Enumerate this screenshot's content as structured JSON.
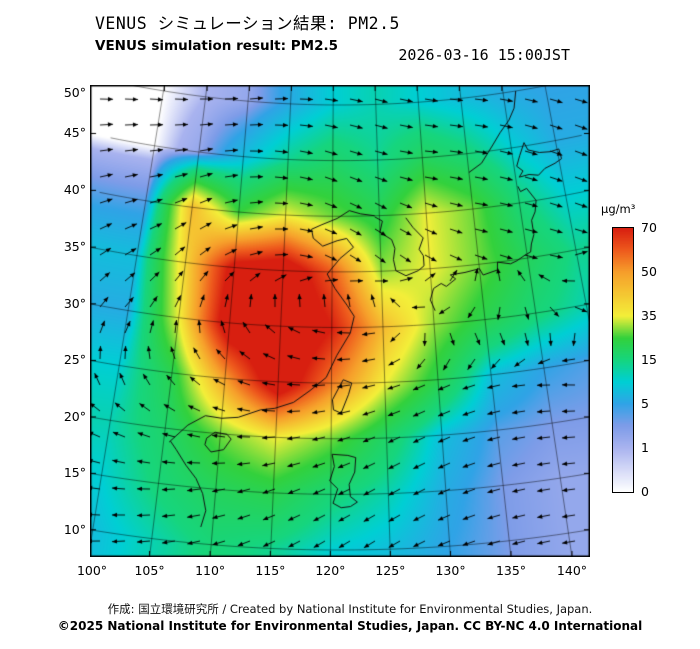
{
  "header": {
    "title_ja": "VENUS シミュレーション結果: PM2.5",
    "title_en": "VENUS simulation result: PM2.5",
    "timestamp": "2026-03-16 15:00JST"
  },
  "footer": {
    "line1": "作成: 国立環境研究所 / Created by National Institute for Environmental Studies, Japan.",
    "line2": "©2025 National Institute for Environmental Studies, Japan. CC BY-NC 4.0 International"
  },
  "colorbar": {
    "unit": "μg/m³",
    "levels": [
      70,
      50,
      35,
      15,
      5,
      1,
      0
    ],
    "scale": [
      [
        0,
        "#ffffff"
      ],
      [
        1,
        "#a9b3ef"
      ],
      [
        3,
        "#7e9ce8"
      ],
      [
        5,
        "#30a3e6"
      ],
      [
        10,
        "#00cfd4"
      ],
      [
        15,
        "#16d57e"
      ],
      [
        25,
        "#33d13c"
      ],
      [
        35,
        "#f3ef39"
      ],
      [
        50,
        "#f69f2b"
      ],
      [
        60,
        "#ee5a1d"
      ],
      [
        70,
        "#d81f10"
      ]
    ]
  },
  "axes": {
    "lat_ticks": [
      "50°",
      "45°",
      "40°",
      "35°",
      "30°",
      "25°",
      "20°",
      "15°",
      "10°"
    ],
    "lat_values": [
      50,
      45,
      40,
      35,
      30,
      25,
      20,
      15,
      10
    ],
    "lon_ticks": [
      "100°",
      "105°",
      "110°",
      "115°",
      "120°",
      "125°",
      "130°",
      "135°",
      "140°"
    ],
    "lon_values": [
      100,
      105,
      110,
      115,
      120,
      125,
      130,
      135,
      140
    ]
  },
  "chart_data": {
    "type": "heatmap",
    "title": "VENUS simulation result: PM2.5",
    "pollutant": "PM2.5",
    "time_label": "2026-03-16 15:00JST",
    "unit": "μg/m³",
    "lon_range": [
      100,
      145
    ],
    "lat_range": [
      10,
      50
    ],
    "colorbar_levels": [
      70,
      50,
      35,
      15,
      5,
      1,
      0
    ],
    "grid_lons": [
      100,
      105,
      110,
      115,
      120,
      125,
      130,
      135,
      140,
      145
    ],
    "grid_lats": [
      50,
      45,
      40,
      35,
      30,
      25,
      20,
      15,
      10
    ],
    "pm25_grid": [
      [
        0,
        1,
        2,
        6,
        10,
        12,
        10,
        8,
        6,
        5
      ],
      [
        0,
        2,
        8,
        14,
        18,
        14,
        20,
        16,
        10,
        6
      ],
      [
        4,
        45,
        25,
        35,
        28,
        22,
        35,
        28,
        16,
        10
      ],
      [
        8,
        40,
        75,
        80,
        60,
        30,
        35,
        28,
        20,
        14
      ],
      [
        6,
        35,
        80,
        85,
        70,
        45,
        30,
        22,
        16,
        12
      ],
      [
        10,
        22,
        50,
        80,
        55,
        35,
        22,
        8,
        5,
        4
      ],
      [
        12,
        18,
        28,
        35,
        28,
        18,
        8,
        4,
        3,
        3
      ],
      [
        10,
        16,
        20,
        22,
        16,
        12,
        6,
        3,
        2,
        2
      ],
      [
        8,
        12,
        16,
        14,
        10,
        8,
        5,
        3,
        2,
        2
      ]
    ],
    "wind_dir_deg": [
      [
        -5,
        0,
        5,
        0,
        -10,
        -15,
        -10,
        -5,
        -10,
        -15
      ],
      [
        5,
        10,
        0,
        -10,
        -20,
        -15,
        -5,
        -10,
        -15,
        -20
      ],
      [
        15,
        25,
        10,
        -5,
        -25,
        -30,
        -20,
        -10,
        -15,
        -20
      ],
      [
        30,
        45,
        25,
        0,
        -30,
        -40,
        -30,
        -20,
        -15,
        -15
      ],
      [
        50,
        70,
        100,
        140,
        170,
        190,
        300,
        325,
        335,
        340
      ],
      [
        90,
        120,
        150,
        170,
        185,
        195,
        205,
        195,
        180,
        175
      ],
      [
        150,
        160,
        170,
        185,
        195,
        205,
        205,
        195,
        185,
        180
      ],
      [
        170,
        180,
        190,
        200,
        205,
        210,
        205,
        195,
        188,
        182
      ],
      [
        180,
        185,
        195,
        205,
        212,
        212,
        202,
        196,
        190,
        186
      ]
    ],
    "coastlines": [
      [
        [
          109,
          11.5
        ],
        [
          109.3,
          13
        ],
        [
          108.9,
          14.5
        ],
        [
          108.2,
          15.8
        ],
        [
          107.2,
          16.9
        ],
        [
          106.2,
          18.2
        ],
        [
          105.6,
          18.9
        ]
      ],
      [
        [
          105.5,
          18.8
        ],
        [
          107,
          20.5
        ],
        [
          108.5,
          21.5
        ],
        [
          110,
          21.4
        ],
        [
          111.5,
          21.6
        ],
        [
          113.5,
          22.4
        ],
        [
          114.8,
          22.6
        ],
        [
          116.5,
          23.2
        ],
        [
          118,
          24.3
        ],
        [
          119.5,
          25.5
        ],
        [
          120.5,
          27.5
        ],
        [
          121.8,
          29.5
        ],
        [
          122.2,
          31
        ],
        [
          121.5,
          32
        ],
        [
          120.3,
          33.5
        ],
        [
          119.5,
          34.8
        ],
        [
          120.8,
          36.2
        ],
        [
          122.2,
          37.2
        ],
        [
          121.5,
          38
        ],
        [
          120.5,
          37.8
        ],
        [
          119,
          37.3
        ],
        [
          118,
          38
        ],
        [
          117.8,
          38.8
        ],
        [
          118.8,
          39.2
        ],
        [
          120.5,
          39.8
        ],
        [
          121.8,
          40.5
        ],
        [
          123,
          40.2
        ],
        [
          124.5,
          40
        ]
      ],
      [
        [
          124.5,
          39.9
        ],
        [
          125.3,
          39.5
        ],
        [
          125,
          38.5
        ],
        [
          126.2,
          37.8
        ],
        [
          126.5,
          37
        ],
        [
          126.3,
          36
        ],
        [
          126.5,
          35
        ],
        [
          127.5,
          34.5
        ],
        [
          128.8,
          34.9
        ],
        [
          129.4,
          35.3
        ],
        [
          129.4,
          36.2
        ],
        [
          129,
          36.8
        ],
        [
          129.5,
          37.8
        ],
        [
          128.5,
          38.8
        ],
        [
          127.8,
          39.7
        ]
      ],
      [
        [
          130.2,
          31.2
        ],
        [
          129.8,
          32.2
        ],
        [
          130.2,
          33.2
        ],
        [
          131,
          33.6
        ],
        [
          131.5,
          33.3
        ],
        [
          132.5,
          33.9
        ],
        [
          132,
          34.3
        ],
        [
          133.5,
          34.4
        ],
        [
          135,
          34.6
        ],
        [
          135.3,
          34
        ],
        [
          136.8,
          34.3
        ],
        [
          136.9,
          35
        ],
        [
          138.2,
          34.7
        ],
        [
          138.9,
          34.9
        ],
        [
          139.8,
          35.3
        ],
        [
          140.4,
          35.5
        ],
        [
          140.6,
          36.2
        ],
        [
          141,
          37
        ],
        [
          141,
          38.3
        ],
        [
          141.5,
          39
        ],
        [
          141.8,
          40
        ],
        [
          141,
          41.2
        ],
        [
          140.3,
          41
        ],
        [
          140.1,
          41.5
        ]
      ],
      [
        [
          140.4,
          42.3
        ],
        [
          141.5,
          42.4
        ],
        [
          142.5,
          42.2
        ],
        [
          143.3,
          42.7
        ],
        [
          144.5,
          43
        ],
        [
          145.3,
          43.3
        ],
        [
          145.2,
          44.2
        ],
        [
          144.2,
          44.1
        ],
        [
          143,
          44.2
        ],
        [
          141.8,
          44.6
        ],
        [
          141.5,
          45.3
        ],
        [
          140.8,
          44.2
        ],
        [
          140.3,
          43.3
        ],
        [
          140.9,
          42.8
        ],
        [
          140.4,
          42.3
        ]
      ],
      [
        [
          121.1,
          25.3
        ],
        [
          121.9,
          25
        ],
        [
          121.6,
          24
        ],
        [
          120.9,
          22.3
        ],
        [
          120.2,
          22.6
        ],
        [
          120.1,
          23.5
        ],
        [
          120.7,
          24.6
        ],
        [
          121.1,
          25.3
        ]
      ],
      [
        [
          108.8,
          19.5
        ],
        [
          109.5,
          20.1
        ],
        [
          110.6,
          20
        ],
        [
          111,
          19.6
        ],
        [
          110.4,
          18.6
        ],
        [
          109.3,
          18.3
        ],
        [
          108.7,
          18.9
        ],
        [
          108.8,
          19.5
        ]
      ],
      [
        [
          120.1,
          18.6
        ],
        [
          121.5,
          18.5
        ],
        [
          122.2,
          18.3
        ],
        [
          122.1,
          17
        ],
        [
          121.6,
          15.9
        ],
        [
          121.7,
          14.8
        ],
        [
          122.3,
          14.3
        ],
        [
          121.7,
          13.9
        ],
        [
          120.9,
          13.8
        ],
        [
          120.2,
          14.2
        ],
        [
          120.6,
          15.5
        ],
        [
          119.9,
          16.2
        ],
        [
          120.3,
          17.5
        ],
        [
          120.1,
          18.6
        ]
      ],
      [
        [
          135,
          43.3
        ],
        [
          136.5,
          44
        ],
        [
          138,
          45.5
        ],
        [
          139,
          46.5
        ],
        [
          140.2,
          47.5
        ],
        [
          141,
          48.5
        ],
        [
          141.5,
          50
        ]
      ]
    ]
  }
}
